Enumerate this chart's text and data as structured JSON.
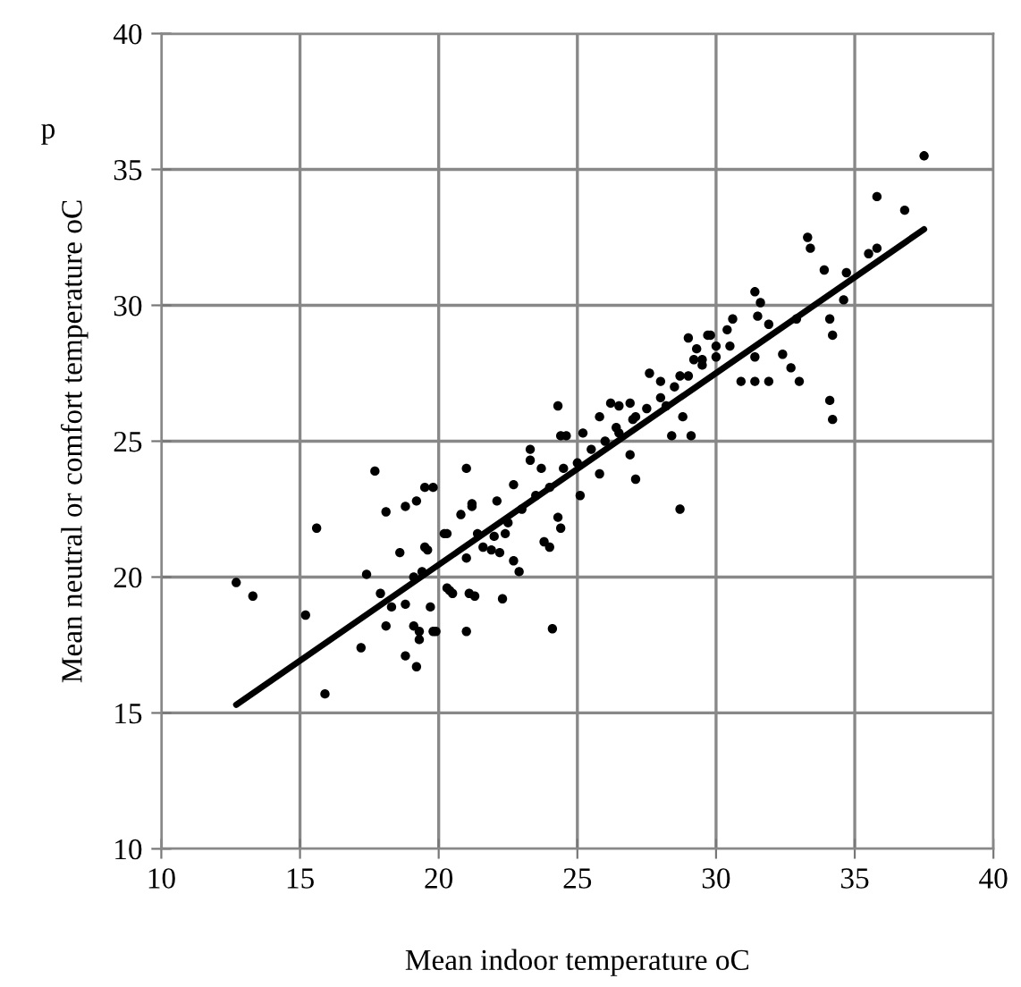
{
  "chart_data": {
    "type": "scatter",
    "xlabel": "Mean indoor temperature oC",
    "ylabel": "Mean neutral or comfort temperature oC",
    "annotations": [
      "p"
    ],
    "xlim": [
      10,
      40
    ],
    "xticks": [
      10,
      15,
      20,
      25,
      30,
      35,
      40
    ],
    "ylim": [
      10,
      40
    ],
    "yticks": [
      10,
      15,
      20,
      25,
      30,
      35,
      40
    ],
    "grid": true,
    "series": [
      {
        "marker": "circle",
        "color": "#000000",
        "x": [
          12.7,
          13.3,
          15.2,
          15.6,
          15.9,
          17.4,
          17.7,
          17.2,
          18.1,
          18.8,
          17.9,
          18.1,
          18.3,
          18.6,
          18.8,
          19.1,
          19.2,
          19.3,
          18.8,
          19.5,
          19.8,
          19.6,
          19.7,
          19.9,
          19.4,
          20.3,
          20.4,
          21.0,
          21.0,
          21.2,
          20.8,
          21.3,
          22.3,
          21.6,
          19.2,
          24.3,
          24.4,
          24.6,
          25.2,
          25.8,
          26.2,
          26.5,
          26.9,
          26.4,
          27.1,
          26.9,
          27.1,
          25.8,
          25.1,
          24.1,
          27.6,
          28.0,
          28.7,
          28.7,
          28.2,
          28.4,
          28.8,
          29.1,
          29.0,
          29.3,
          29.5,
          29.8,
          23.3,
          23.3,
          23.7,
          22.7,
          22.1,
          22.4,
          22.7,
          22.9,
          22.2,
          23.8,
          24.0,
          24.3,
          24.4,
          21.2,
          21.4,
          21.9,
          21.0,
          20.2,
          20.3,
          20.5,
          21.1,
          19.8,
          19.5,
          19.1,
          19.3,
          37.5,
          35.8,
          36.8,
          33.3,
          33.4,
          33.9,
          34.7,
          35.5,
          35.8,
          34.6,
          34.1,
          34.2,
          34.1,
          34.2,
          32.4,
          32.7,
          33.0,
          30.9,
          31.4,
          31.9,
          31.4,
          31.6,
          31.5,
          31.9,
          32.9,
          30.6,
          30.4,
          30.0,
          29.7,
          29.2,
          31.4,
          22.0,
          22.5,
          23.0,
          23.5,
          24.0,
          24.5,
          25.0,
          25.5,
          26.0,
          26.5,
          27.0,
          27.5,
          28.0,
          28.5,
          29.0,
          29.5,
          30.0,
          30.5
        ],
        "values": [
          19.8,
          19.3,
          18.6,
          21.8,
          15.7,
          20.1,
          23.9,
          17.4,
          22.4,
          22.6,
          19.4,
          18.2,
          18.9,
          20.9,
          17.1,
          18.2,
          16.7,
          17.7,
          19.0,
          23.3,
          23.3,
          21.0,
          18.9,
          18.0,
          20.2,
          21.6,
          19.5,
          24.0,
          18.0,
          22.7,
          22.3,
          19.3,
          19.2,
          21.1,
          22.8,
          26.3,
          25.2,
          25.2,
          25.3,
          25.9,
          26.4,
          26.3,
          26.4,
          25.5,
          25.9,
          24.5,
          23.6,
          23.8,
          23.0,
          18.1,
          27.5,
          27.2,
          27.4,
          22.5,
          26.3,
          25.2,
          25.9,
          25.2,
          28.8,
          28.4,
          28.0,
          28.9,
          24.7,
          24.3,
          24.0,
          23.4,
          22.8,
          21.6,
          20.6,
          20.2,
          20.9,
          21.3,
          21.1,
          22.2,
          21.8,
          22.6,
          21.6,
          21.0,
          20.7,
          21.6,
          19.6,
          19.4,
          19.4,
          18.0,
          21.1,
          20.0,
          18.0,
          35.5,
          34.0,
          33.5,
          32.5,
          32.1,
          31.3,
          31.2,
          31.9,
          32.1,
          30.2,
          29.5,
          28.9,
          26.5,
          25.8,
          28.2,
          27.7,
          27.2,
          27.2,
          27.2,
          27.2,
          30.5,
          30.1,
          29.6,
          29.3,
          29.5,
          29.5,
          29.1,
          28.5,
          28.9,
          28.0,
          28.1,
          21.5,
          22.0,
          22.5,
          23.0,
          23.3,
          24.0,
          24.2,
          24.7,
          25.0,
          25.3,
          25.8,
          26.2,
          26.6,
          27.0,
          27.4,
          27.8,
          28.1,
          28.5
        ]
      },
      {
        "type": "line",
        "color": "#000000",
        "x": [
          12.7,
          37.5
        ],
        "values": [
          15.3,
          32.8
        ]
      }
    ]
  }
}
